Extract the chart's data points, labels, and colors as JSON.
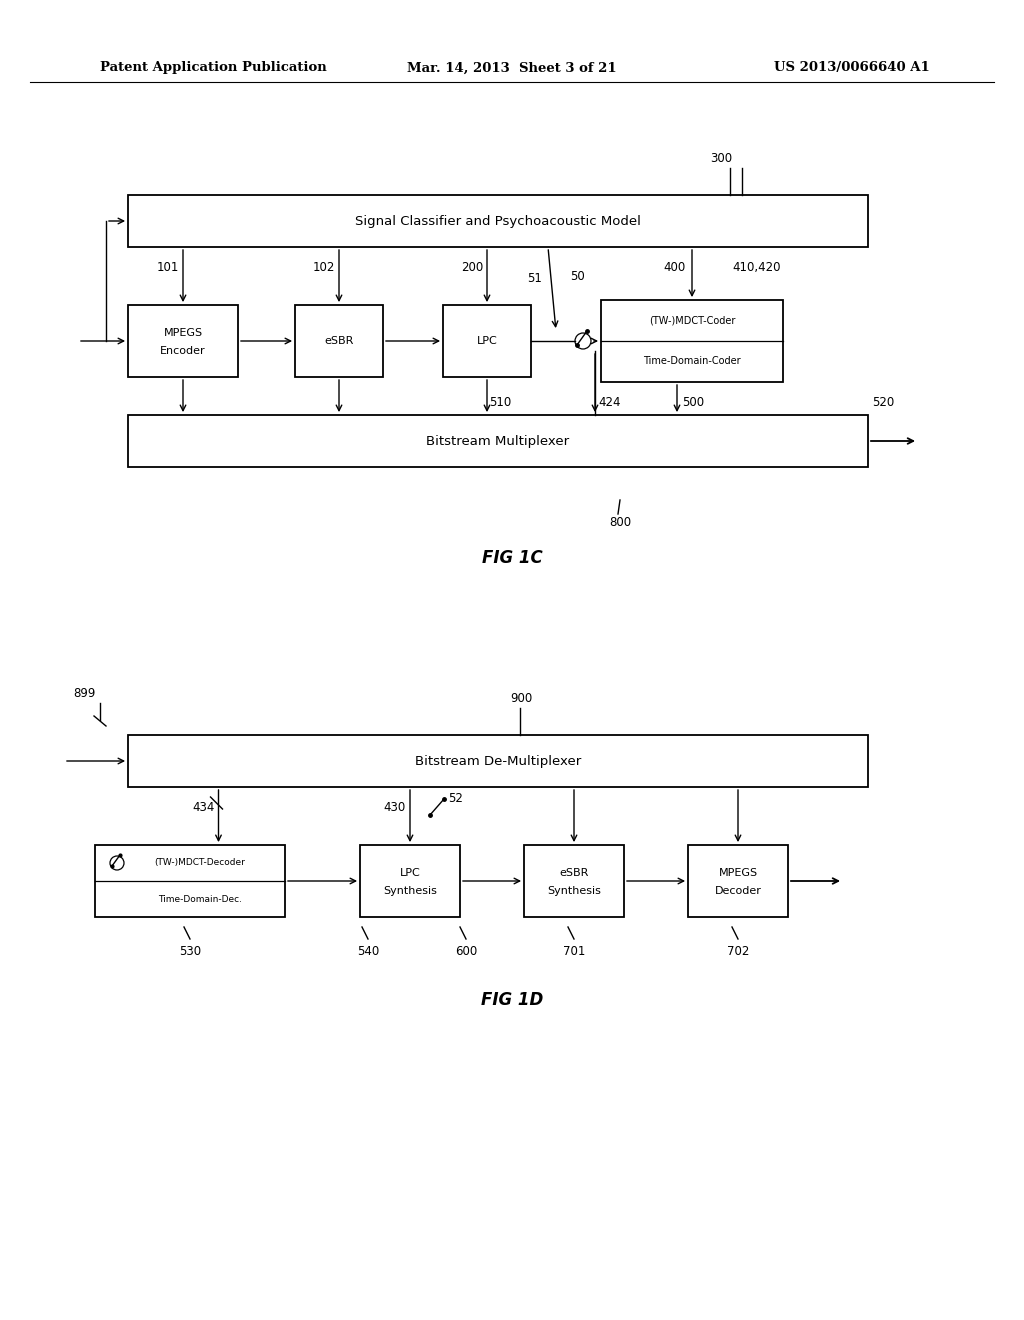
{
  "bg_color": "#ffffff",
  "header_left": "Patent Application Publication",
  "header_center": "Mar. 14, 2013  Sheet 3 of 21",
  "header_right": "US 2013/0066640 A1",
  "fig1c_label": "FIG 1C",
  "fig1d_label": "FIG 1D"
}
